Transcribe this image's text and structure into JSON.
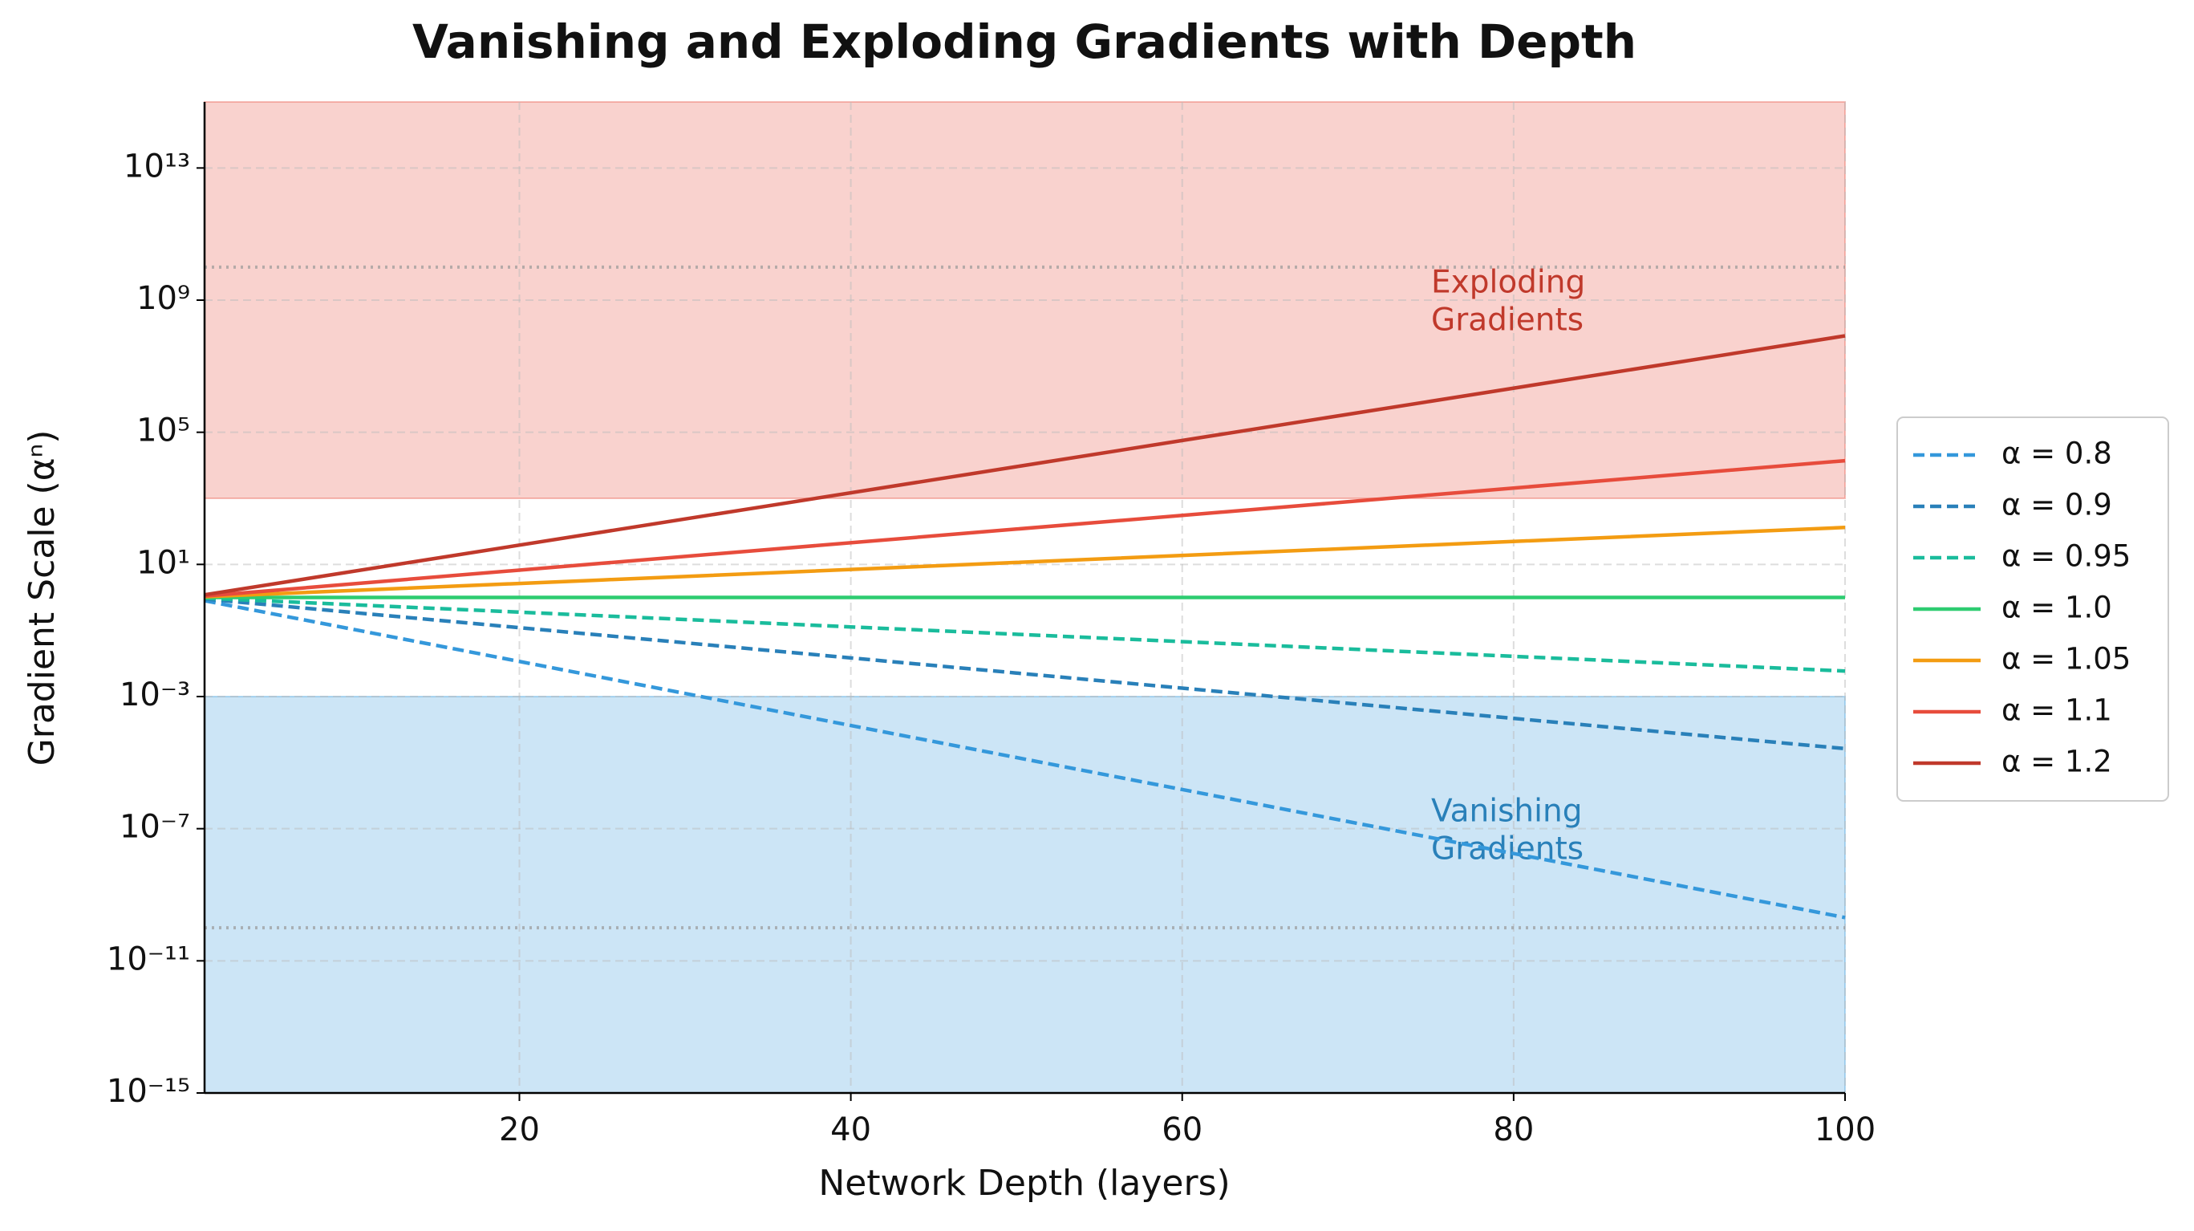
{
  "chart_data": {
    "type": "line",
    "title": "Vanishing and Exploding Gradients with Depth",
    "x_label": "Network Depth (layers)",
    "y_label": "Gradient Scale (αⁿ)",
    "x": [
      1,
      25,
      50,
      75,
      100
    ],
    "xlim": [
      1,
      100
    ],
    "xticks": [
      20,
      40,
      60,
      80,
      100
    ],
    "ylim": [
      1e-15,
      1000000000000000.0
    ],
    "log_y": true,
    "yticks": [
      {
        "value": 1e-15,
        "label": "10⁻¹⁵"
      },
      {
        "value": 1e-11,
        "label": "10⁻¹¹"
      },
      {
        "value": 1e-07,
        "label": "10⁻⁷"
      },
      {
        "value": 0.001,
        "label": "10⁻³"
      },
      {
        "value": 10,
        "label": "10¹"
      },
      {
        "value": 100000.0,
        "label": "10⁵"
      },
      {
        "value": 1000000000.0,
        "label": "10⁹"
      },
      {
        "value": 10000000000000.0,
        "label": "10¹³"
      }
    ],
    "grid": true,
    "legend": "right",
    "series": [
      {
        "name": "α = 0.8",
        "color": "#3498db",
        "linestyle": "dashed",
        "values": [
          0.8,
          0.003778,
          1.427e-05,
          5.39e-08,
          2.037e-10
        ]
      },
      {
        "name": "α = 0.9",
        "color": "#2980b9",
        "linestyle": "dashed",
        "values": [
          0.9,
          0.07179,
          0.005154,
          0.00037,
          2.656e-05
        ]
      },
      {
        "name": "α = 0.95",
        "color": "#1abc9c",
        "linestyle": "dashed",
        "values": [
          0.95,
          0.2774,
          0.07694,
          0.02134,
          0.005921
        ]
      },
      {
        "name": "α = 1.0",
        "color": "#2ecc71",
        "linestyle": "solid",
        "values": [
          1,
          1,
          1,
          1,
          1
        ]
      },
      {
        "name": "α = 1.05",
        "color": "#f39c12",
        "linestyle": "solid",
        "values": [
          1.05,
          3.386,
          11.467,
          38.83,
          131.5
        ]
      },
      {
        "name": "α = 1.1",
        "color": "#e74c3c",
        "linestyle": "solid",
        "values": [
          1.1,
          10.83,
          117.4,
          1271.9,
          13780.6
        ]
      },
      {
        "name": "α = 1.2",
        "color": "#c0392b",
        "linestyle": "solid",
        "values": [
          1.2,
          95.4,
          9100.4,
          868147,
          82817975
        ]
      }
    ],
    "regions": [
      {
        "range": [
          1000,
          1000000000000000.0
        ],
        "color": "#e74c3c"
      },
      {
        "range": [
          1e-15,
          0.001
        ],
        "color": "#3498db"
      }
    ],
    "hlines": [
      10000000000.0,
      1e-10
    ],
    "annotations": [
      {
        "lines": [
          "Exploding",
          "Gradients"
        ],
        "color": "#c0392b"
      },
      {
        "lines": [
          "Vanishing",
          "Gradients"
        ],
        "color": "#2980b9"
      }
    ]
  }
}
